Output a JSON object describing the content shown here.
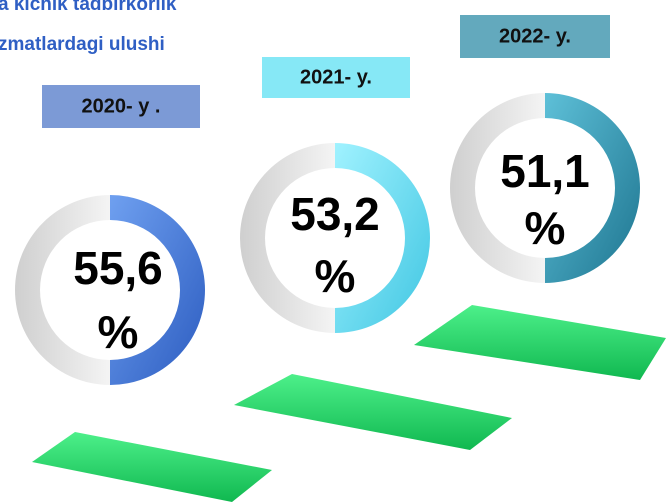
{
  "title": {
    "lines": [
      "a kichik tadbirkorlik",
      "zmatlardagi ulushi"
    ]
  },
  "items": [
    {
      "year": "2020- y .",
      "value": "55,6",
      "unit": "%"
    },
    {
      "year": "2021- y.",
      "value": "53,2",
      "unit": "%"
    },
    {
      "year": "2022- y.",
      "value": "51,1",
      "unit": "%"
    }
  ]
}
